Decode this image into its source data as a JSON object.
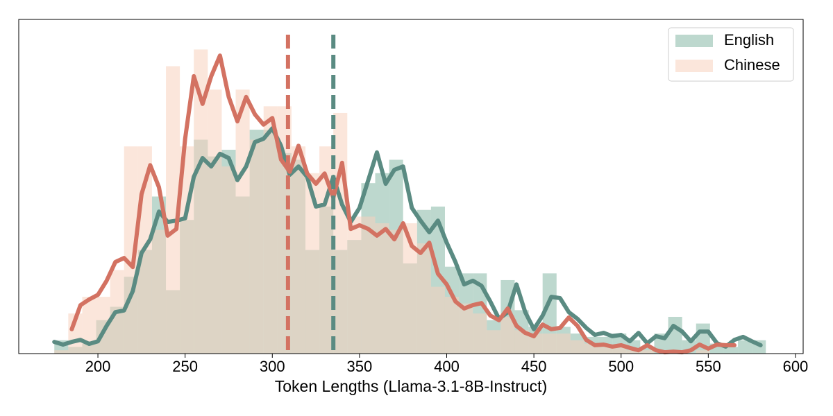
{
  "chart_data": {
    "type": "histogram",
    "x_label": "Token Lengths (Llama-3.1-8B-Instruct)",
    "xlim": [
      154.6,
      604.4
    ],
    "xticks": [
      200,
      250,
      300,
      350,
      400,
      450,
      500,
      550,
      600
    ],
    "ylim": [
      0,
      100
    ],
    "legend": "upper right",
    "bins": [
      175,
      183,
      191,
      199,
      207,
      215,
      223,
      231,
      239,
      247,
      255,
      263,
      271,
      279,
      287,
      295,
      303,
      311,
      319,
      327,
      335,
      343,
      351,
      359,
      367,
      375,
      383,
      391,
      399,
      407,
      415,
      423,
      431,
      439,
      447,
      455,
      463,
      471,
      479,
      487,
      495,
      503,
      511,
      519,
      527,
      535,
      543,
      551,
      559,
      567,
      575,
      583
    ],
    "series": [
      {
        "name": "English",
        "color": "#86b8a6",
        "values": [
          4,
          2,
          3,
          10,
          14,
          23,
          31,
          47,
          19,
          40,
          64,
          59,
          61,
          47,
          67,
          67,
          60,
          58,
          31,
          44,
          31,
          34,
          51,
          54,
          58,
          27,
          43,
          44,
          26,
          24,
          24,
          10,
          22,
          13,
          8,
          24,
          8,
          6,
          5,
          5,
          6,
          4,
          2,
          6,
          11,
          4,
          9,
          3,
          2,
          4,
          4
        ]
      },
      {
        "name": "Chinese",
        "color": "#f7d2bd",
        "values": [
          1,
          12,
          17,
          17,
          25,
          62,
          62,
          37,
          86,
          62,
          91,
          79,
          56,
          79,
          64,
          74,
          74,
          62,
          54,
          62,
          72,
          41,
          41,
          39,
          37,
          39,
          33,
          20,
          17,
          15,
          12,
          7,
          11,
          7,
          6,
          6,
          6,
          4,
          3,
          2,
          2,
          1,
          1,
          0,
          1,
          0,
          1,
          0,
          0,
          0,
          0
        ]
      }
    ],
    "lines": [
      {
        "color": "#5a8b82",
        "x": [
          175,
          180,
          185,
          190,
          195,
          200,
          205,
          210,
          215,
          220,
          225,
          230,
          235,
          240,
          245,
          250,
          255,
          260,
          265,
          270,
          275,
          280,
          285,
          290,
          295,
          300,
          305,
          310,
          315,
          320,
          325,
          330,
          335,
          340,
          345,
          350,
          355,
          360,
          365,
          370,
          375,
          380,
          385,
          390,
          395,
          400,
          405,
          410,
          415,
          420,
          425,
          430,
          435,
          440,
          445,
          450,
          455,
          460,
          465,
          470,
          475,
          480,
          485,
          490,
          495,
          500,
          505,
          510,
          515,
          520,
          525,
          530,
          535,
          540,
          545,
          550,
          555,
          560,
          565,
          570,
          575,
          580
        ],
        "values": [
          3.5,
          2.7,
          3.5,
          4.1,
          2.9,
          3.7,
          8.3,
          12.4,
          12.9,
          18.7,
          30.1,
          34.2,
          42.5,
          39.4,
          39.8,
          40.5,
          52.9,
          58.5,
          56.0,
          59.8,
          58.5,
          51.9,
          56.0,
          63.3,
          64.3,
          67.4,
          62.2,
          53.5,
          56.0,
          52.9,
          44.0,
          44.6,
          52.9,
          44.6,
          39.4,
          43.6,
          51.9,
          60.2,
          50.8,
          55.0,
          56.0,
          43.6,
          39.8,
          36.3,
          39.8,
          33.2,
          27.4,
          20.7,
          21.8,
          20.3,
          15.6,
          10.4,
          12.4,
          20.7,
          12.4,
          7.3,
          11.4,
          17.0,
          16.6,
          12.4,
          10.4,
          7.7,
          5.6,
          6.2,
          5.2,
          5.6,
          3.7,
          6.2,
          3.1,
          5.2,
          4.6,
          8.3,
          6.6,
          3.7,
          6.6,
          6.6,
          3.1,
          2.1,
          4.1,
          5.0,
          3.7,
          2.5
        ]
      },
      {
        "color": "#d37262",
        "x": [
          185,
          190,
          195,
          200,
          205,
          210,
          215,
          220,
          225,
          230,
          235,
          240,
          245,
          250,
          255,
          260,
          265,
          270,
          275,
          280,
          285,
          290,
          295,
          300,
          305,
          310,
          315,
          320,
          325,
          330,
          335,
          340,
          345,
          350,
          355,
          360,
          365,
          370,
          375,
          380,
          385,
          390,
          395,
          400,
          405,
          410,
          415,
          420,
          425,
          430,
          435,
          440,
          445,
          450,
          455,
          460,
          465,
          470,
          475,
          480,
          485,
          490,
          495,
          500,
          505,
          510,
          515,
          520,
          525,
          530,
          535,
          540,
          545,
          550,
          555,
          560,
          565
        ],
        "values": [
          7.3,
          14.5,
          16.2,
          17.6,
          21.8,
          27.4,
          28.6,
          25.9,
          47.7,
          56.4,
          49.8,
          35.3,
          37.3,
          64.3,
          83.0,
          74.7,
          83.0,
          89.2,
          76.8,
          69.5,
          76.8,
          71.6,
          68.5,
          70.5,
          58.1,
          54.4,
          62.2,
          53.9,
          50.8,
          53.9,
          46.7,
          57.1,
          37.3,
          38.4,
          37.3,
          35.3,
          37.3,
          34.2,
          39.0,
          32.2,
          30.1,
          33.2,
          23.9,
          20.7,
          15.6,
          13.5,
          14.5,
          15.1,
          11.4,
          10.0,
          13.5,
          8.3,
          6.2,
          5.2,
          8.7,
          7.3,
          7.7,
          10.8,
          8.3,
          4.1,
          2.5,
          2.7,
          2.1,
          2.5,
          1.7,
          1.0,
          2.5,
          1.0,
          0.4,
          0.6,
          0.4,
          1.0,
          2.7,
          1.5,
          2.7,
          2.5,
          2.5
        ]
      }
    ],
    "vlines": [
      {
        "value": 309,
        "color": "#d37262"
      },
      {
        "value": 335,
        "color": "#5a8b82"
      }
    ]
  }
}
